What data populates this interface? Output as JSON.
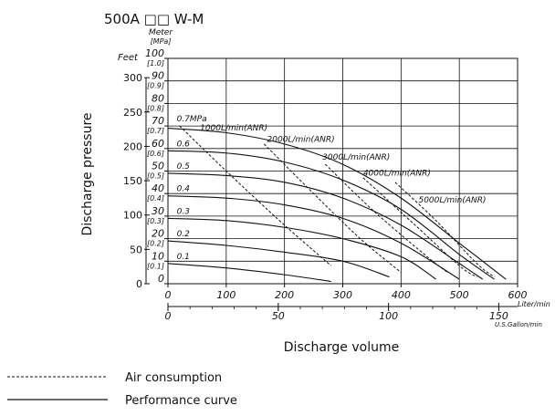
{
  "title": "500A □□ W-M",
  "chart_data": {
    "type": "line",
    "ylabel": "Discharge pressure",
    "xlabel": "Discharge volume",
    "x_unit_primary": "Liter/min",
    "x_unit_secondary": "U.S.Gallon/min",
    "y_label_feet": "Feet",
    "y_label_meter": "Meter",
    "y_label_mpa": "[MPa]",
    "xlim": [
      0,
      600
    ],
    "ylim_meter": [
      0,
      100
    ],
    "x_ticks": [
      "0",
      "100",
      "200",
      "300",
      "400",
      "500",
      "600"
    ],
    "x_ticks_gallon": [
      "0",
      "50",
      "100",
      "150"
    ],
    "y_ticks_feet": [
      "0",
      "50",
      "100",
      "150",
      "200",
      "250",
      "300"
    ],
    "y_ticks_meter": [
      "0",
      "10",
      "20",
      "30",
      "40",
      "50",
      "60",
      "70",
      "80",
      "90",
      "100"
    ],
    "y_ticks_mpa": [
      "",
      "[0.1]",
      "[0.2]",
      "[0.3]",
      "[0.4]",
      "[0.5]",
      "[0.6]",
      "[0.7]",
      "[0.8]",
      "[0.9]",
      "[1.0]"
    ],
    "grid": true,
    "performance_curves": [
      {
        "label": "0.1",
        "label_x": 15,
        "label_y": 11,
        "x": [
          0,
          100,
          200,
          280
        ],
        "y": [
          9,
          7,
          4,
          1
        ]
      },
      {
        "label": "0.2",
        "label_x": 15,
        "label_y": 21,
        "x": [
          0,
          100,
          200,
          300,
          380
        ],
        "y": [
          19,
          17,
          14,
          10,
          3
        ]
      },
      {
        "label": "0.3",
        "label_x": 15,
        "label_y": 31,
        "x": [
          0,
          100,
          200,
          300,
          400,
          460
        ],
        "y": [
          29,
          28,
          25,
          20,
          12,
          2
        ]
      },
      {
        "label": "0.4",
        "label_x": 15,
        "label_y": 41,
        "x": [
          0,
          100,
          200,
          300,
          400,
          500
        ],
        "y": [
          39,
          38,
          35,
          29,
          18,
          2
        ]
      },
      {
        "label": "0.5",
        "label_x": 15,
        "label_y": 51,
        "x": [
          0,
          100,
          200,
          300,
          400,
          500,
          540
        ],
        "y": [
          49,
          48,
          45,
          38,
          26,
          9,
          2
        ]
      },
      {
        "label": "0.6",
        "label_x": 15,
        "label_y": 61,
        "x": [
          0,
          100,
          200,
          300,
          400,
          500,
          560
        ],
        "y": [
          59,
          58,
          54,
          46,
          33,
          13,
          2
        ]
      },
      {
        "label": "0.7MPa",
        "label_x": 15,
        "label_y": 72,
        "x": [
          0,
          100,
          200,
          300,
          400,
          500,
          580
        ],
        "y": [
          69,
          67,
          62,
          53,
          38,
          18,
          2
        ]
      }
    ],
    "air_consumption_curves": [
      {
        "label": "1000L/min(ANR)",
        "label_x": 55,
        "label_y": 68,
        "x": [
          20,
          100,
          200,
          280
        ],
        "y": [
          70,
          50,
          26,
          8
        ]
      },
      {
        "label": "2000L/min(ANR)",
        "label_x": 170,
        "label_y": 63,
        "x": [
          165,
          250,
          330,
          400
        ],
        "y": [
          62,
          40,
          20,
          5
        ]
      },
      {
        "label": "3000L/min(ANR)",
        "label_x": 265,
        "label_y": 55,
        "x": [
          270,
          350,
          440,
          480
        ],
        "y": [
          53,
          33,
          13,
          5
        ]
      },
      {
        "label": "4000L/min(ANR)",
        "label_x": 335,
        "label_y": 48,
        "x": [
          335,
          420,
          500,
          530
        ],
        "y": [
          47,
          27,
          8,
          3
        ]
      },
      {
        "label": "5000L/min(ANR)",
        "label_x": 430,
        "label_y": 36,
        "x": [
          390,
          460,
          530,
          560
        ],
        "y": [
          45,
          28,
          9,
          3
        ]
      }
    ]
  },
  "legend": {
    "air": "Air consumption",
    "performance": "Performance curve"
  }
}
